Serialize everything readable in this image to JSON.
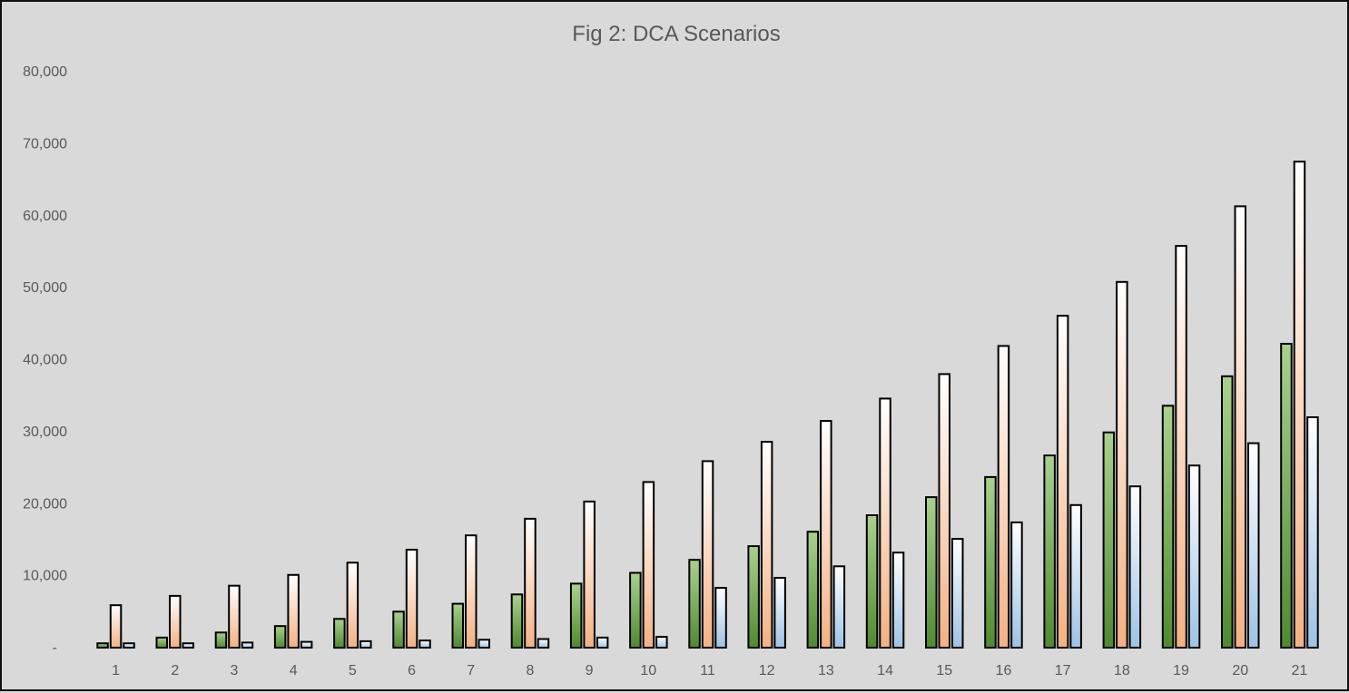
{
  "chart_data": {
    "type": "bar",
    "title": "Fig 2: DCA Scenarios",
    "xlabel": "",
    "ylabel": "",
    "categories": [
      "1",
      "2",
      "3",
      "4",
      "5",
      "6",
      "7",
      "8",
      "9",
      "10",
      "11",
      "12",
      "13",
      "14",
      "15",
      "16",
      "17",
      "18",
      "19",
      "20",
      "21"
    ],
    "ylim": [
      0,
      80000
    ],
    "yticks": [
      0,
      10000,
      20000,
      30000,
      40000,
      50000,
      60000,
      70000,
      80000
    ],
    "ytick_labels": [
      "-",
      "10,000",
      "20,000",
      "30,000",
      "40,000",
      "50,000",
      "60,000",
      "70,000",
      "80,000"
    ],
    "grid": false,
    "legend": "none",
    "series": [
      {
        "color": "#4f8a2f",
        "color_light": "#a9d18e",
        "values": [
          600,
          1400,
          2100,
          3000,
          4000,
          5000,
          6100,
          7400,
          8900,
          10400,
          12200,
          14100,
          16100,
          18400,
          20900,
          23700,
          26700,
          29900,
          33600,
          37700,
          42200
        ]
      },
      {
        "color": "#f4b183",
        "color_light": "#ffffff",
        "values": [
          5900,
          7200,
          8600,
          10100,
          11800,
          13600,
          15600,
          17900,
          20300,
          23000,
          25900,
          28600,
          31500,
          34600,
          38000,
          41900,
          46100,
          50800,
          55800,
          61300,
          67500
        ]
      },
      {
        "color": "#9dc3e6",
        "color_light": "#ffffff",
        "values": [
          600,
          600,
          700,
          800,
          900,
          1000,
          1100,
          1200,
          1400,
          1500,
          8300,
          9700,
          11300,
          13200,
          15100,
          17400,
          19800,
          22400,
          25300,
          28400,
          32000
        ]
      }
    ]
  }
}
